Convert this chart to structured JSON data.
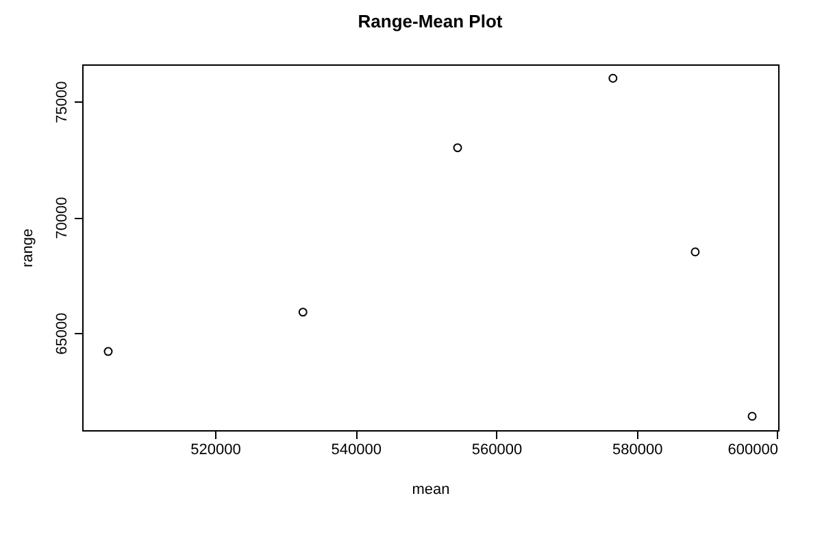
{
  "chart_data": {
    "type": "scatter",
    "title": "Range-Mean Plot",
    "xlabel": "mean",
    "ylabel": "range",
    "x": [
      504800,
      532500,
      554500,
      576600,
      588300,
      596400
    ],
    "values": [
      64200,
      65900,
      73000,
      76000,
      68500,
      61400
    ],
    "color": "#000000",
    "marker": "circle",
    "xlim": [
      501100,
      600100
    ],
    "xticks": [
      520000,
      540000,
      560000,
      580000,
      600000
    ],
    "ylim": [
      60800,
      76600
    ],
    "yticks": [
      65000,
      70000,
      75000
    ],
    "grid": false
  }
}
